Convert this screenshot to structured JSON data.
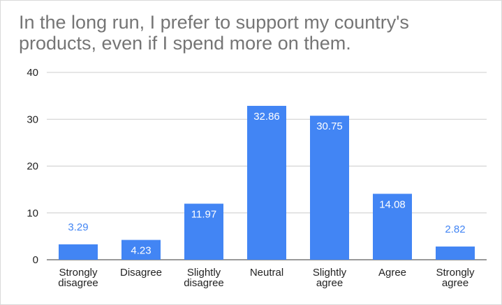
{
  "chart_data": {
    "type": "bar",
    "title_lines": [
      "In the long run, I prefer to support my country's",
      "products, even if I spend more on them."
    ],
    "xlabel": "",
    "ylabel": "",
    "categories": [
      [
        "Strongly",
        "disagree"
      ],
      [
        "Disagree"
      ],
      [
        "Slightly",
        "disagree"
      ],
      [
        "Neutral"
      ],
      [
        "Slightly",
        "agree"
      ],
      [
        "Agree"
      ],
      [
        "Strongly",
        "agree"
      ]
    ],
    "values": [
      3.29,
      4.23,
      11.97,
      32.86,
      30.75,
      14.08,
      2.82
    ],
    "value_labels": [
      "3.29",
      "4.23",
      "11.97",
      "32.86",
      "30.75",
      "14.08",
      "2.82"
    ],
    "ylim": [
      0,
      40
    ],
    "yticks": [
      0,
      10,
      20,
      30,
      40
    ],
    "ytick_labels": [
      "0",
      "10",
      "20",
      "30",
      "40"
    ],
    "grid": true,
    "legend": "none",
    "colors": {
      "bar": "#4285f4",
      "label_inside": "#ffffff",
      "label_outside": "#4285f4",
      "grid": "#cccccc",
      "axis": "#333333"
    }
  }
}
